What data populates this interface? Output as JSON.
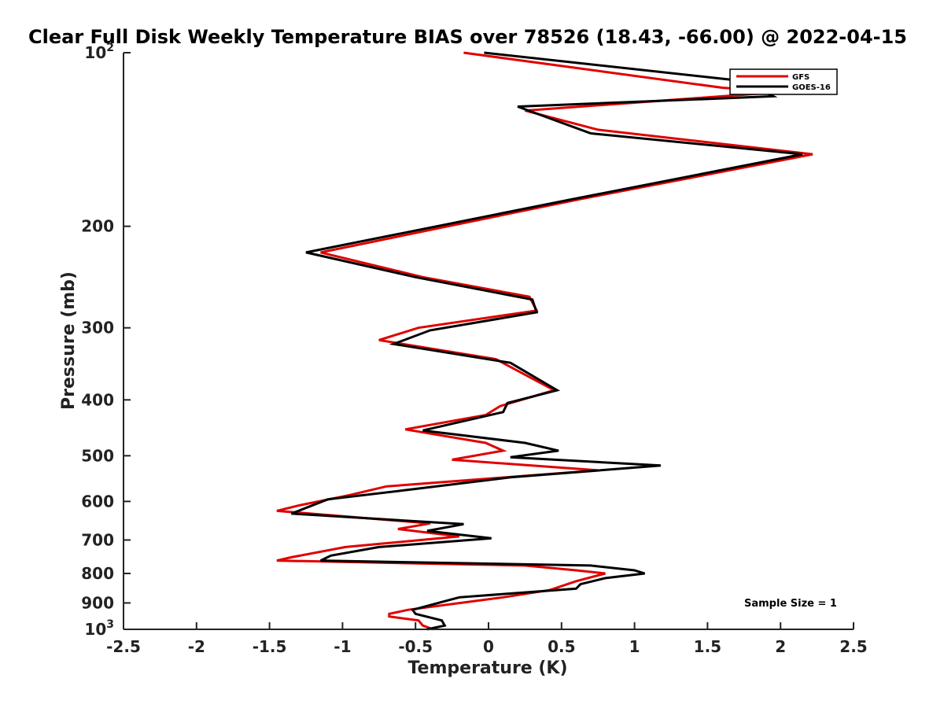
{
  "chart_data": {
    "type": "line",
    "title": "Clear Full Disk Weekly Temperature BIAS over 78526 (18.43, -66.00) @ 2022-04-15",
    "xlabel": "Temperature (K)",
    "ylabel": "Pressure (mb)",
    "xlim": [
      -2.5,
      2.5
    ],
    "ylim": [
      100,
      1000
    ],
    "y_scale": "log",
    "y_reversed": true,
    "x_ticks": [
      "-2.5",
      "-2",
      "-1.5",
      "-1",
      "-0.5",
      "0",
      "0.5",
      "1",
      "1.5",
      "2",
      "2.5"
    ],
    "y_ticks": [
      {
        "value": 100,
        "base": "10",
        "exp": "2"
      },
      {
        "value": 200,
        "label": "200"
      },
      {
        "value": 300,
        "label": "300"
      },
      {
        "value": 400,
        "label": "400"
      },
      {
        "value": 500,
        "label": "500"
      },
      {
        "value": 600,
        "label": "600"
      },
      {
        "value": 700,
        "label": "700"
      },
      {
        "value": 800,
        "label": "800"
      },
      {
        "value": 900,
        "label": "900"
      },
      {
        "value": 1000,
        "base": "10",
        "exp": "3"
      }
    ],
    "grid": false,
    "legend_position": "top-right",
    "annotation": "Sample Size = 1",
    "series": [
      {
        "name": "GFS",
        "color": "#e00000",
        "points": [
          [
            -0.17,
            100
          ],
          [
            1.6,
            115
          ],
          [
            2.0,
            117
          ],
          [
            0.25,
            126
          ],
          [
            0.75,
            136
          ],
          [
            2.22,
            150
          ],
          [
            0.6,
            180
          ],
          [
            -1.15,
            222
          ],
          [
            -0.45,
            245
          ],
          [
            0.28,
            265
          ],
          [
            0.33,
            280
          ],
          [
            -0.48,
            300
          ],
          [
            -0.75,
            315
          ],
          [
            0.05,
            340
          ],
          [
            0.45,
            385
          ],
          [
            0.08,
            410
          ],
          [
            -0.02,
            425
          ],
          [
            -0.57,
            450
          ],
          [
            -0.02,
            475
          ],
          [
            0.1,
            490
          ],
          [
            -0.25,
            508
          ],
          [
            0.75,
            530
          ],
          [
            -0.7,
            565
          ],
          [
            -0.95,
            585
          ],
          [
            -1.3,
            610
          ],
          [
            -1.45,
            623
          ],
          [
            -0.4,
            655
          ],
          [
            -0.62,
            670
          ],
          [
            -0.2,
            690
          ],
          [
            -0.98,
            720
          ],
          [
            -1.35,
            750
          ],
          [
            -1.45,
            760
          ],
          [
            0.25,
            775
          ],
          [
            0.6,
            790
          ],
          [
            0.8,
            800
          ],
          [
            0.6,
            825
          ],
          [
            0.42,
            855
          ],
          [
            0.1,
            880
          ],
          [
            -0.55,
            925
          ],
          [
            -0.68,
            940
          ],
          [
            -0.68,
            950
          ],
          [
            -0.48,
            965
          ],
          [
            -0.45,
            985
          ],
          [
            -0.38,
            1000
          ]
        ]
      },
      {
        "name": "GOES-16",
        "color": "#000000",
        "points": [
          [
            -0.03,
            100
          ],
          [
            1.75,
            112
          ],
          [
            1.95,
            119
          ],
          [
            0.2,
            124
          ],
          [
            0.7,
            138
          ],
          [
            2.15,
            150
          ],
          [
            0.55,
            180
          ],
          [
            -1.25,
            222
          ],
          [
            -0.5,
            245
          ],
          [
            0.3,
            268
          ],
          [
            0.33,
            282
          ],
          [
            -0.4,
            303
          ],
          [
            -0.65,
            320
          ],
          [
            0.15,
            345
          ],
          [
            0.47,
            385
          ],
          [
            0.13,
            405
          ],
          [
            0.1,
            420
          ],
          [
            -0.45,
            452
          ],
          [
            0.25,
            475
          ],
          [
            0.48,
            490
          ],
          [
            0.15,
            503
          ],
          [
            1.18,
            520
          ],
          [
            0.15,
            545
          ],
          [
            -0.6,
            575
          ],
          [
            -1.1,
            595
          ],
          [
            -1.35,
            630
          ],
          [
            -0.17,
            657
          ],
          [
            -0.42,
            675
          ],
          [
            0.02,
            695
          ],
          [
            -0.75,
            720
          ],
          [
            -1.08,
            745
          ],
          [
            -1.15,
            760
          ],
          [
            0.7,
            775
          ],
          [
            1.0,
            790
          ],
          [
            1.07,
            800
          ],
          [
            0.8,
            815
          ],
          [
            0.63,
            835
          ],
          [
            0.6,
            850
          ],
          [
            -0.2,
            880
          ],
          [
            -0.52,
            925
          ],
          [
            -0.5,
            940
          ],
          [
            -0.32,
            965
          ],
          [
            -0.3,
            985
          ],
          [
            -0.42,
            1000
          ]
        ]
      }
    ]
  }
}
